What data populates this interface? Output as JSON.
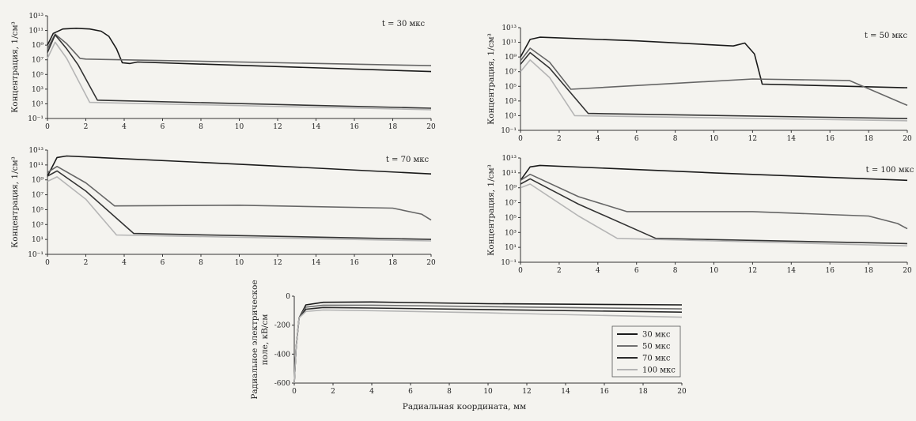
{
  "chart_data": [
    {
      "type": "line",
      "panel": "concentration-30",
      "annotation": "t = 30 мкс",
      "ylabel": "Концентрация, 1/см³",
      "xlabel": "",
      "xlim": [
        0,
        20
      ],
      "ylim_log10": [
        -1,
        13
      ],
      "yscale": "log",
      "x_ticks": [
        "0",
        "2",
        "4",
        "6",
        "8",
        "10",
        "12",
        "14",
        "16",
        "18",
        "20"
      ],
      "y_ticks": [
        "10⁻¹",
        "10¹",
        "10³",
        "10⁵",
        "10⁷",
        "10⁹",
        "10¹¹",
        "10¹³"
      ],
      "series": [
        {
          "color": "#1a1a1a",
          "points": [
            [
              0,
              9
            ],
            [
              0.3,
              10.6
            ],
            [
              0.8,
              11.2
            ],
            [
              1.5,
              11.3
            ],
            [
              2.2,
              11.2
            ],
            [
              2.8,
              10.9
            ],
            [
              3.2,
              10.2
            ],
            [
              3.6,
              8.5
            ],
            [
              3.9,
              6.6
            ],
            [
              4.3,
              6.5
            ],
            [
              4.7,
              6.7
            ],
            [
              20,
              5.4
            ]
          ]
        },
        {
          "color": "#666666",
          "points": [
            [
              0,
              8.5
            ],
            [
              0.4,
              10.5
            ],
            [
              1,
              9.2
            ],
            [
              1.7,
              7.2
            ],
            [
              2,
              7.1
            ],
            [
              20,
              6.2
            ]
          ]
        },
        {
          "color": "#333333",
          "points": [
            [
              0,
              8
            ],
            [
              0.4,
              10.4
            ],
            [
              1,
              8.5
            ],
            [
              1.6,
              6.3
            ],
            [
              2.6,
              1.5
            ],
            [
              20,
              0.4
            ]
          ]
        },
        {
          "color": "#b5b5b5",
          "points": [
            [
              0,
              7.2
            ],
            [
              0.4,
              9.4
            ],
            [
              1,
              7.2
            ],
            [
              2.2,
              1.2
            ],
            [
              20,
              0.2
            ]
          ]
        }
      ]
    },
    {
      "type": "line",
      "panel": "concentration-50",
      "annotation": "t = 50 мкс",
      "ylabel": "Концентрация, 1/см³",
      "xlabel": "",
      "xlim": [
        0,
        20
      ],
      "ylim_log10": [
        -1,
        13
      ],
      "yscale": "log",
      "x_ticks": [
        "0",
        "2",
        "4",
        "6",
        "8",
        "10",
        "12",
        "14",
        "16",
        "18",
        "20"
      ],
      "y_ticks": [
        "10⁻¹",
        "10¹",
        "10³",
        "10⁵",
        "10⁷",
        "10⁹",
        "10¹¹",
        "10¹³"
      ],
      "series": [
        {
          "color": "#1a1a1a",
          "points": [
            [
              0,
              9
            ],
            [
              0.5,
              11.4
            ],
            [
              1,
              11.7
            ],
            [
              6,
              11.2
            ],
            [
              11,
              10.5
            ],
            [
              11.6,
              10.9
            ],
            [
              12.1,
              9.4
            ],
            [
              12.5,
              5.3
            ],
            [
              20,
              4.8
            ]
          ]
        },
        {
          "color": "#666666",
          "points": [
            [
              0,
              8.5
            ],
            [
              0.5,
              10.2
            ],
            [
              1.5,
              8.3
            ],
            [
              2.6,
              4.6
            ],
            [
              12,
              6
            ],
            [
              17,
              5.8
            ],
            [
              20,
              2.4
            ]
          ]
        },
        {
          "color": "#333333",
          "points": [
            [
              0,
              8
            ],
            [
              0.5,
              9.6
            ],
            [
              1.5,
              7.5
            ],
            [
              3.5,
              1.3
            ],
            [
              20,
              0.6
            ]
          ]
        },
        {
          "color": "#b5b5b5",
          "points": [
            [
              0,
              7
            ],
            [
              0.5,
              8.6
            ],
            [
              1.5,
              6.2
            ],
            [
              2.8,
              1
            ],
            [
              20,
              0.3
            ]
          ]
        }
      ]
    },
    {
      "type": "line",
      "panel": "concentration-70",
      "annotation": "t = 70 мкс",
      "ylabel": "Концентрация, 1/см³",
      "xlabel": "",
      "xlim": [
        0,
        20
      ],
      "ylim_log10": [
        -1,
        13
      ],
      "yscale": "log",
      "x_ticks": [
        "0",
        "2",
        "4",
        "6",
        "8",
        "10",
        "12",
        "14",
        "16",
        "18",
        "20"
      ],
      "y_ticks": [
        "10⁻¹",
        "10¹",
        "10³",
        "10⁵",
        "10⁷",
        "10⁹",
        "10¹¹",
        "10¹³"
      ],
      "series": [
        {
          "color": "#1a1a1a",
          "points": [
            [
              0,
              9.5
            ],
            [
              0.5,
              12
            ],
            [
              1,
              12.2
            ],
            [
              10,
              11.1
            ],
            [
              20,
              9.8
            ]
          ]
        },
        {
          "color": "#666666",
          "points": [
            [
              0,
              10
            ],
            [
              0.5,
              10.8
            ],
            [
              2,
              8.6
            ],
            [
              3.5,
              5.5
            ],
            [
              10,
              5.6
            ],
            [
              18,
              5.2
            ],
            [
              19.5,
              4.4
            ],
            [
              20,
              3.6
            ]
          ]
        },
        {
          "color": "#333333",
          "points": [
            [
              0,
              9.5
            ],
            [
              0.5,
              10.2
            ],
            [
              2,
              7.5
            ],
            [
              4.5,
              1.8
            ],
            [
              20,
              1
            ]
          ]
        },
        {
          "color": "#b5b5b5",
          "points": [
            [
              0,
              8.8
            ],
            [
              0.5,
              9.4
            ],
            [
              2,
              6.4
            ],
            [
              3.6,
              1.6
            ],
            [
              20,
              0.8
            ]
          ]
        }
      ]
    },
    {
      "type": "line",
      "panel": "concentration-100",
      "annotation": "t = 100 мкс",
      "ylabel": "Концентрация, 1/см³",
      "xlabel": "",
      "xlim": [
        0,
        20
      ],
      "ylim_log10": [
        -1,
        13
      ],
      "yscale": "log",
      "x_ticks": [
        "0",
        "2",
        "4",
        "6",
        "8",
        "10",
        "12",
        "14",
        "16",
        "18",
        "20"
      ],
      "y_ticks": [
        "10⁻¹",
        "10¹",
        "10³",
        "10⁵",
        "10⁷",
        "10⁹",
        "10¹¹",
        "10¹³"
      ],
      "series": [
        {
          "color": "#1a1a1a",
          "points": [
            [
              0,
              10
            ],
            [
              0.5,
              11.8
            ],
            [
              1,
              12
            ],
            [
              10,
              11
            ],
            [
              20,
              10
            ]
          ]
        },
        {
          "color": "#666666",
          "points": [
            [
              0,
              10
            ],
            [
              0.5,
              10.8
            ],
            [
              3,
              7.8
            ],
            [
              5.5,
              5.8
            ],
            [
              12,
              5.8
            ],
            [
              18,
              5.2
            ],
            [
              19.5,
              4.2
            ],
            [
              20,
              3.5
            ]
          ]
        },
        {
          "color": "#333333",
          "points": [
            [
              0,
              9.5
            ],
            [
              0.5,
              10.2
            ],
            [
              3,
              6.8
            ],
            [
              7,
              2.2
            ],
            [
              20,
              1.5
            ]
          ]
        },
        {
          "color": "#b5b5b5",
          "points": [
            [
              0,
              9
            ],
            [
              0.5,
              9.5
            ],
            [
              3,
              5.2
            ],
            [
              5,
              2.2
            ],
            [
              20,
              1.2
            ]
          ]
        }
      ]
    },
    {
      "type": "line",
      "panel": "radial-field",
      "annotation": "",
      "ylabel": "Радиальное электрическое поле, кВ/см",
      "xlabel": "Радиальная координата, мм",
      "xlim": [
        0,
        20
      ],
      "ylim": [
        -600,
        0
      ],
      "yscale": "linear",
      "x_ticks": [
        "0",
        "2",
        "4",
        "6",
        "8",
        "10",
        "12",
        "14",
        "16",
        "18",
        "20"
      ],
      "y_ticks": [
        "0",
        "-200",
        "-400",
        "-600"
      ],
      "legend_position": "bottom-right",
      "series": [
        {
          "name": "30 мкс",
          "color": "#1a1a1a",
          "points": [
            [
              0,
              -600
            ],
            [
              0.1,
              -350
            ],
            [
              0.25,
              -150
            ],
            [
              0.6,
              -60
            ],
            [
              1.5,
              -42
            ],
            [
              4,
              -40
            ],
            [
              10,
              -52
            ],
            [
              20,
              -60
            ]
          ]
        },
        {
          "name": "50 мкс",
          "color": "#707070",
          "points": [
            [
              0,
              -600
            ],
            [
              0.1,
              -350
            ],
            [
              0.25,
              -150
            ],
            [
              0.6,
              -75
            ],
            [
              1.5,
              -62
            ],
            [
              4,
              -62
            ],
            [
              10,
              -72
            ],
            [
              20,
              -88
            ]
          ]
        },
        {
          "name": "70 мкс",
          "color": "#2a2a2a",
          "points": [
            [
              0,
              -600
            ],
            [
              0.1,
              -350
            ],
            [
              0.25,
              -150
            ],
            [
              0.6,
              -90
            ],
            [
              1.5,
              -78
            ],
            [
              4,
              -82
            ],
            [
              10,
              -92
            ],
            [
              20,
              -110
            ]
          ]
        },
        {
          "name": "100 мкс",
          "color": "#b5b5b5",
          "points": [
            [
              0,
              -600
            ],
            [
              0.1,
              -350
            ],
            [
              0.25,
              -150
            ],
            [
              0.6,
              -105
            ],
            [
              1.5,
              -95
            ],
            [
              4,
              -100
            ],
            [
              10,
              -115
            ],
            [
              20,
              -145
            ]
          ]
        }
      ]
    }
  ]
}
